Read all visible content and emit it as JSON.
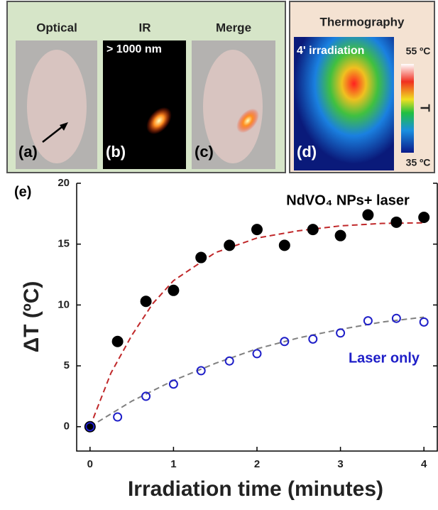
{
  "panels": [
    {
      "title": "Optical",
      "label": "(a)"
    },
    {
      "title": "IR",
      "label": "(b)",
      "note": "> 1000 nm"
    },
    {
      "title": "Merge",
      "label": "(c)"
    },
    {
      "title": "Thermography",
      "label": "(d)",
      "note": "4' irradiation",
      "scale_max": "55 ºC",
      "scale_min": "35 ºC",
      "scale_label": "T"
    }
  ],
  "chart_data": {
    "type": "scatter",
    "panel_label": "(e)",
    "x_label": "Irradiation time (minutes)",
    "y_label": "ΔT (ºC)",
    "xlim": [
      -0.16,
      4.16
    ],
    "ylim": [
      -2,
      20
    ],
    "xticks": [
      0,
      1,
      2,
      3,
      4
    ],
    "yticks": [
      0,
      5,
      10,
      15,
      20
    ],
    "series": [
      {
        "name": "NdVO₄ NPs+ laser",
        "color": "#000000",
        "marker": "filled",
        "x": [
          0,
          0.33,
          0.67,
          1,
          1.33,
          1.67,
          2,
          2.33,
          2.67,
          3,
          3.33,
          3.67,
          4
        ],
        "values": [
          0,
          7,
          10.3,
          11.2,
          13.9,
          14.9,
          16.2,
          14.9,
          16.2,
          15.7,
          17.4,
          16.8,
          17.2
        ]
      },
      {
        "name": "Laser only",
        "color": "#1f1fc8",
        "marker": "open",
        "x": [
          0,
          0.33,
          0.67,
          1,
          1.33,
          1.67,
          2,
          2.33,
          2.67,
          3,
          3.33,
          3.67,
          4
        ],
        "values": [
          0,
          0.8,
          2.5,
          3.5,
          4.6,
          5.4,
          6,
          7,
          7.2,
          7.7,
          8.7,
          8.9,
          8.6
        ]
      }
    ],
    "fits": [
      {
        "color": "#c0282a",
        "x": [
          0,
          0.25,
          0.5,
          0.75,
          1,
          1.5,
          2,
          2.5,
          3,
          3.5,
          4
        ],
        "values": [
          0,
          4.4,
          7.5,
          10.1,
          12,
          14.3,
          15.5,
          16.1,
          16.5,
          16.7,
          16.75
        ]
      },
      {
        "color": "#808080",
        "x": [
          0,
          0.5,
          1,
          1.5,
          2,
          2.5,
          3,
          3.5,
          4
        ],
        "values": [
          0,
          2.1,
          3.8,
          5.2,
          6.4,
          7.3,
          8,
          8.6,
          9
        ]
      }
    ]
  }
}
